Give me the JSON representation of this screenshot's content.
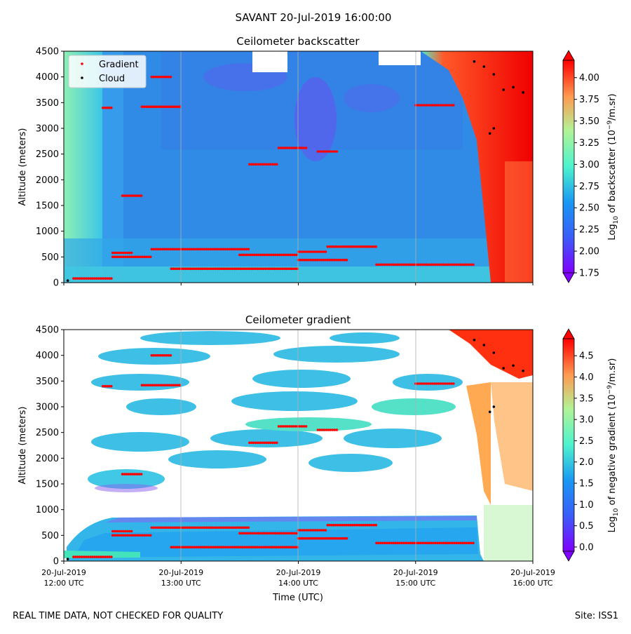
{
  "figure": {
    "suptitle": "SAVANT 20-Jul-2019 16:00:00",
    "footer_left": "REAL TIME DATA, NOT CHECKED FOR QUALITY",
    "footer_right": "Site: ISS1"
  },
  "chart_data": [
    {
      "type": "heatmap",
      "title": "Ceilometer backscatter",
      "ylabel": "Altitude (meters)",
      "xlabel": "",
      "ylim": [
        0,
        4500
      ],
      "yticks": [
        0,
        500,
        1000,
        1500,
        2000,
        2500,
        3000,
        3500,
        4000,
        4500
      ],
      "xlim": [
        "2019-07-20 12:00",
        "2019-07-20 16:00"
      ],
      "xtick_values": [
        "2019-07-20 12:00",
        "2019-07-20 13:00",
        "2019-07-20 14:00",
        "2019-07-20 15:00",
        "2019-07-20 16:00"
      ],
      "grid": "x only",
      "legend": {
        "placement": "upper-left",
        "entries": [
          {
            "name": "Gradient",
            "color": "#ff0000"
          },
          {
            "name": "Cloud",
            "color": "#000000"
          }
        ]
      },
      "colorbar": {
        "label_prefix": "Log",
        "label_sub": "10",
        "label_mid": " of backscatter (10",
        "label_sup": "−9",
        "label_suffix": "/m.sr)",
        "range": [
          1.75,
          4.2
        ],
        "ticks": [
          "1.75",
          "2.00",
          "2.25",
          "2.50",
          "2.75",
          "3.00",
          "3.25",
          "3.50",
          "3.75",
          "4.00"
        ],
        "colormap": "rainbow"
      },
      "gradient_points": [
        {
          "x0": "12:05",
          "x1": "12:25",
          "y": 80
        },
        {
          "x0": "12:25",
          "x1": "12:35",
          "y": 580
        },
        {
          "x0": "12:25",
          "x1": "12:45",
          "y": 500
        },
        {
          "x0": "12:45",
          "x1": "13:35",
          "y": 650
        },
        {
          "x0": "12:55",
          "x1": "14:00",
          "y": 270
        },
        {
          "x0": "13:30",
          "x1": "14:00",
          "y": 540
        },
        {
          "x0": "14:00",
          "x1": "14:15",
          "y": 600
        },
        {
          "x0": "14:15",
          "x1": "14:40",
          "y": 700
        },
        {
          "x0": "14:00",
          "x1": "14:25",
          "y": 440
        },
        {
          "x0": "14:40",
          "x1": "15:30",
          "y": 350
        },
        {
          "x0": "12:30",
          "x1": "12:40",
          "y": 1690
        },
        {
          "x0": "12:20",
          "x1": "12:25",
          "y": 3400
        },
        {
          "x0": "12:40",
          "x1": "13:00",
          "y": 3420
        },
        {
          "x0": "12:45",
          "x1": "12:55",
          "y": 4000
        },
        {
          "x0": "13:35",
          "x1": "13:50",
          "y": 2300
        },
        {
          "x0": "13:50",
          "x1": "14:05",
          "y": 2620
        },
        {
          "x0": "14:10",
          "x1": "14:20",
          "y": 2550
        },
        {
          "x0": "15:00",
          "x1": "15:20",
          "y": 3450
        }
      ],
      "cloud_points": [
        {
          "x": "15:30",
          "y": 4300
        },
        {
          "x": "15:35",
          "y": 4200
        },
        {
          "x": "15:40",
          "y": 4050
        },
        {
          "x": "15:45",
          "y": 3750
        },
        {
          "x": "15:50",
          "y": 3800
        },
        {
          "x": "15:55",
          "y": 3700
        },
        {
          "x": "15:40",
          "y": 3000
        },
        {
          "x": "15:38",
          "y": 2900
        },
        {
          "x": "12:02",
          "y": 40
        }
      ]
    },
    {
      "type": "heatmap",
      "title": "Ceilometer gradient",
      "ylabel": "Altitude (meters)",
      "xlabel": "Time (UTC)",
      "ylim": [
        0,
        4500
      ],
      "yticks": [
        0,
        500,
        1000,
        1500,
        2000,
        2500,
        3000,
        3500,
        4000,
        4500
      ],
      "xlim": [
        "2019-07-20 12:00",
        "2019-07-20 16:00"
      ],
      "xtick_values": [
        "2019-07-20 12:00",
        "2019-07-20 13:00",
        "2019-07-20 14:00",
        "2019-07-20 15:00",
        "2019-07-20 16:00"
      ],
      "xtick_labels": [
        [
          "20-Jul-2019",
          "12:00 UTC"
        ],
        [
          "20-Jul-2019",
          "13:00 UTC"
        ],
        [
          "20-Jul-2019",
          "14:00 UTC"
        ],
        [
          "20-Jul-2019",
          "15:00 UTC"
        ],
        [
          "20-Jul-2019",
          "16:00 UTC"
        ]
      ],
      "grid": "x only",
      "colorbar": {
        "label_prefix": "Log",
        "label_sub": "10",
        "label_mid": " of negative gradient (10",
        "label_sup": "−9",
        "label_suffix": "/m.sr)",
        "range": [
          -0.1,
          4.9
        ],
        "ticks": [
          "0.0",
          "0.5",
          "1.0",
          "1.5",
          "2.0",
          "2.5",
          "3.0",
          "3.5",
          "4.0",
          "4.5"
        ],
        "colormap": "rainbow"
      }
    }
  ],
  "colors": {
    "gradient": "#ff0000",
    "cloud": "#000000",
    "bg_blue": "#2f8be6",
    "bg_cyan": "#3fd0e0"
  }
}
